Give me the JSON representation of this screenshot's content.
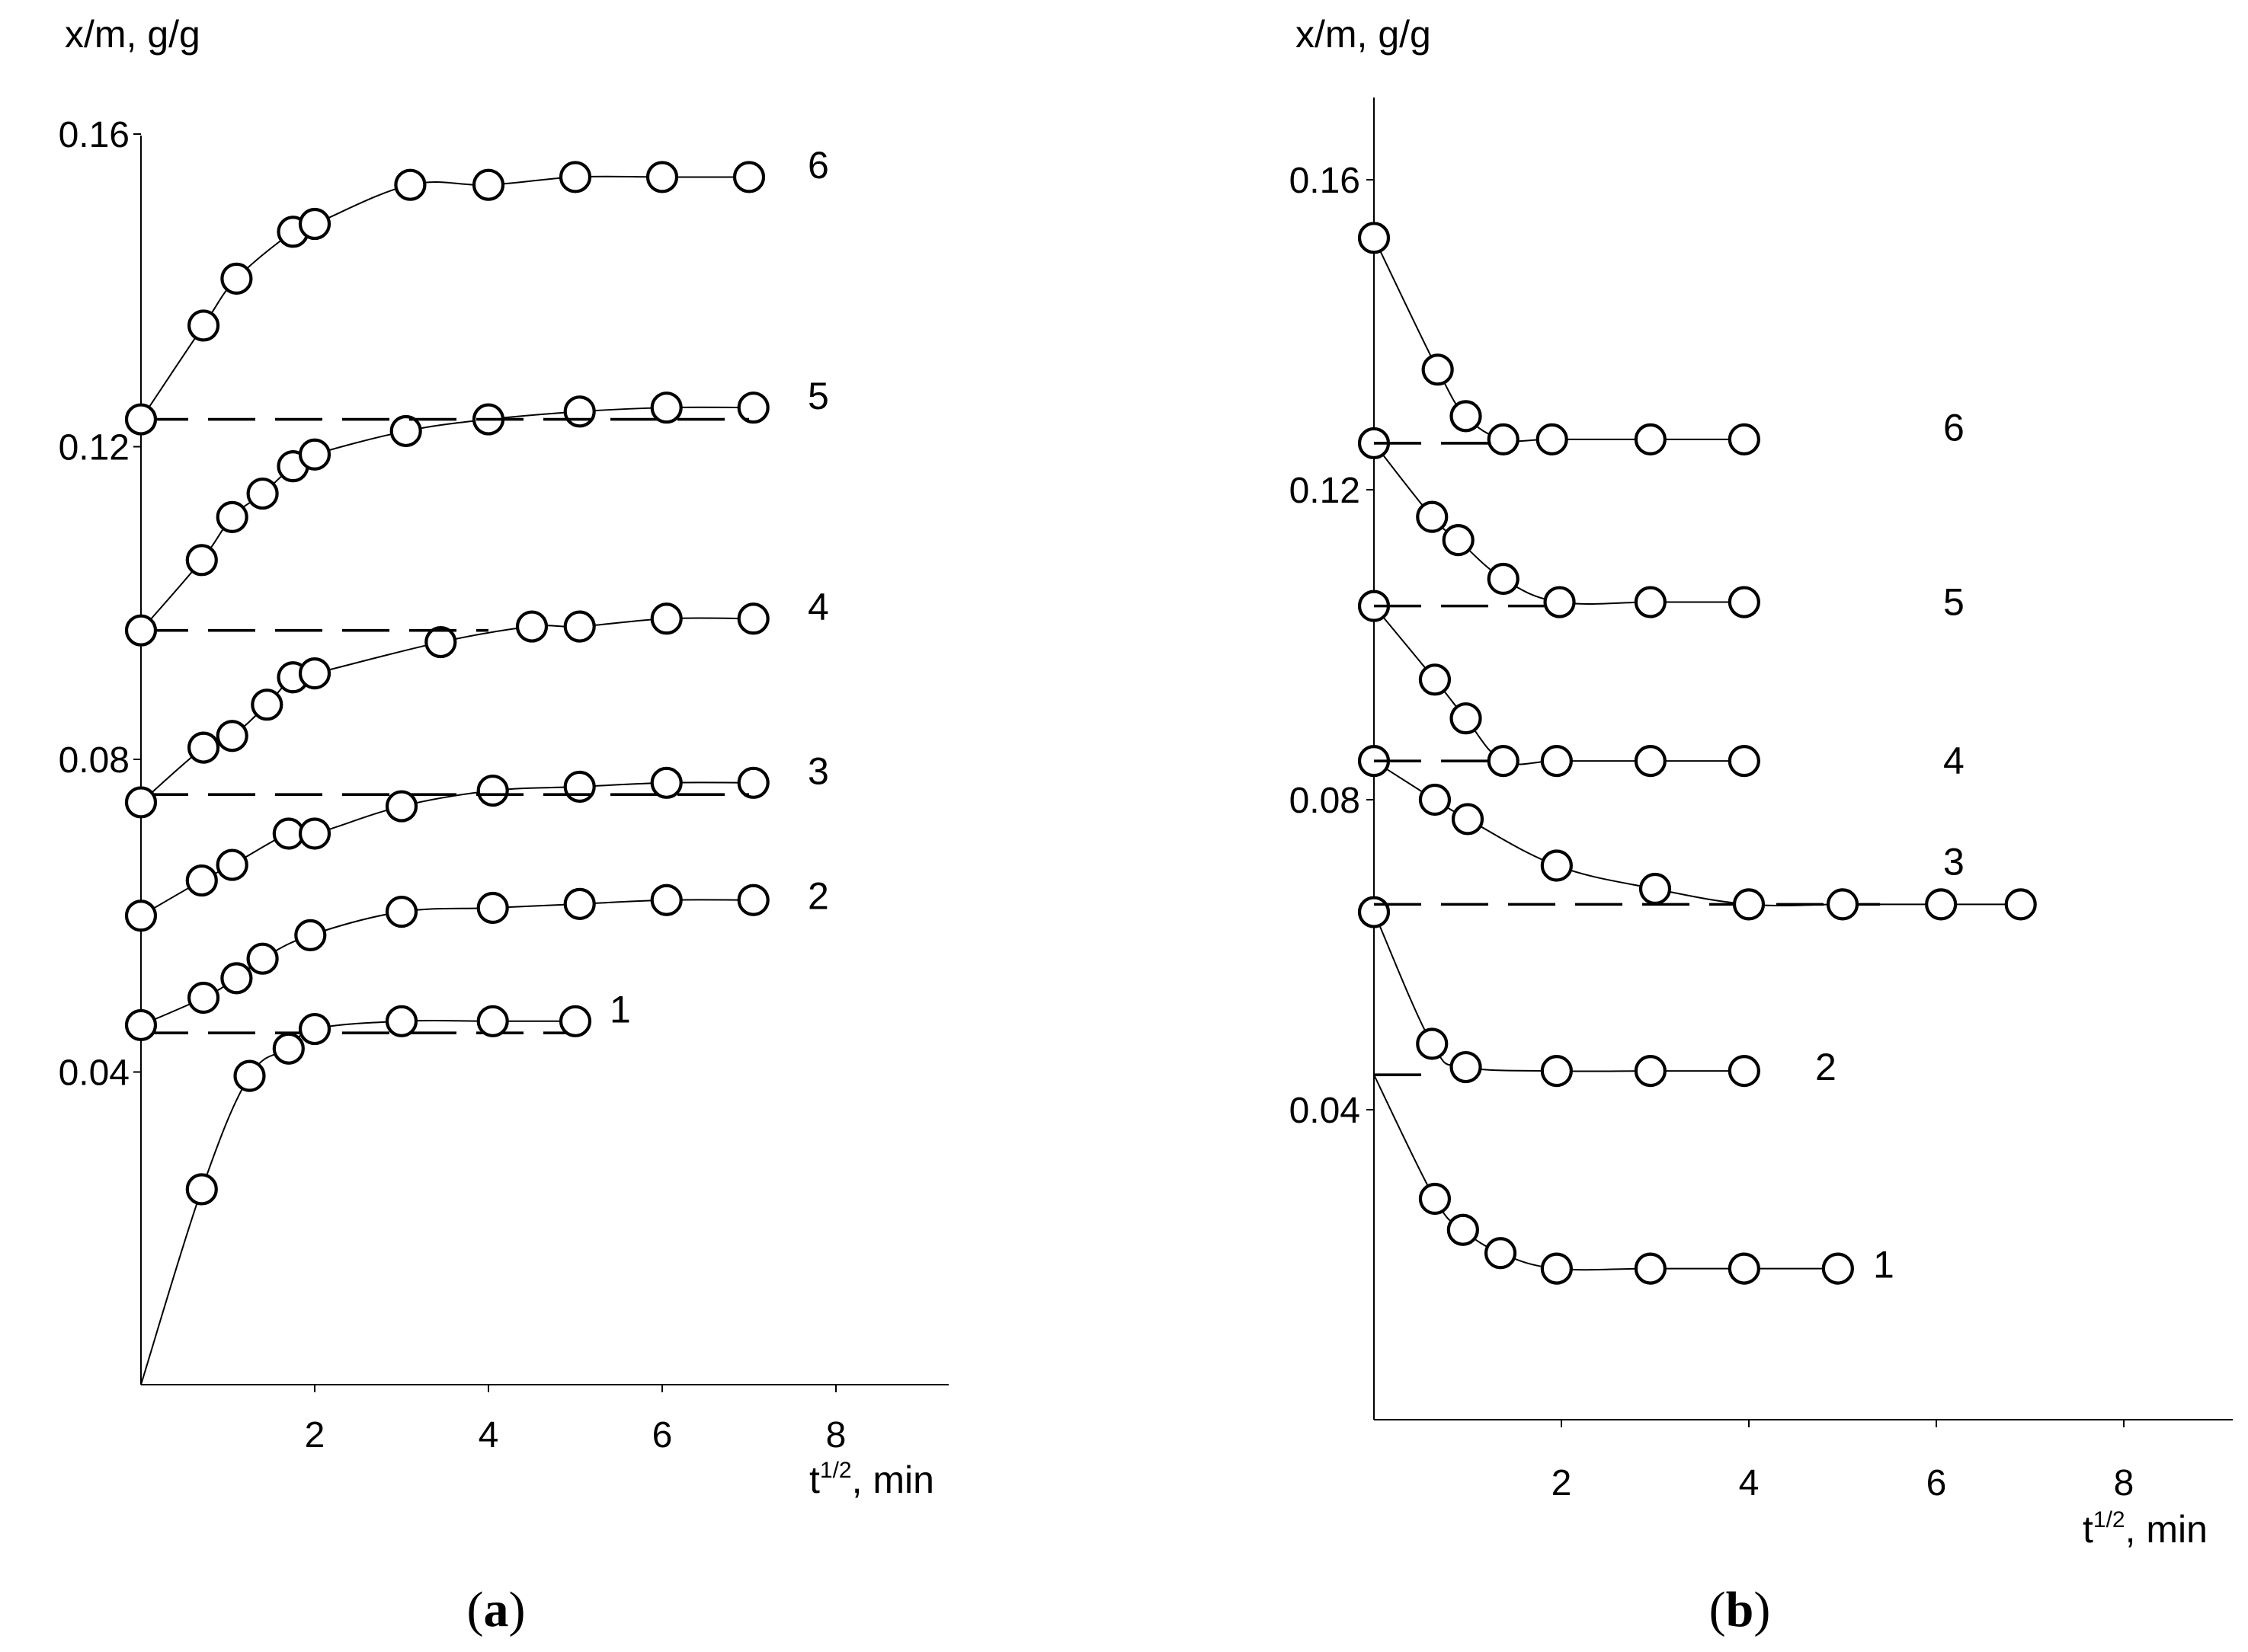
{
  "chart_data": [
    {
      "type": "line",
      "panel": "(a)",
      "panel_letter": "a",
      "ylabel": "x/m, g/g",
      "xlabel": {
        "base": "t",
        "sup": "1/2",
        "rest": ", min"
      },
      "xlim": [
        0,
        9.3
      ],
      "ylim": [
        0,
        0.165
      ],
      "xticks": [
        2,
        4,
        6,
        8
      ],
      "yticks": [
        0.04,
        0.08,
        0.12,
        0.16
      ],
      "ytick_labels": [
        "0.04",
        "0.08",
        "0.12",
        "0.16"
      ],
      "xtick_labels": [
        "2",
        "4",
        "6",
        "8"
      ],
      "grid": false,
      "series": [
        {
          "label": "1",
          "start": [
            0,
            0.0
          ],
          "points": [
            [
              0.7,
              0.025
            ],
            [
              1.25,
              0.0395
            ],
            [
              1.7,
              0.043
            ],
            [
              2.0,
              0.0455
            ],
            [
              3.0,
              0.0465
            ],
            [
              4.05,
              0.0465
            ],
            [
              5.0,
              0.0465
            ]
          ],
          "dashed": [
            0,
            5.0,
            0.045
          ]
        },
        {
          "label": "2",
          "points": [
            [
              0,
              0.046
            ],
            [
              0.72,
              0.0495
            ],
            [
              1.1,
              0.052
            ],
            [
              1.4,
              0.0545
            ],
            [
              1.95,
              0.0575
            ],
            [
              3.0,
              0.0605
            ],
            [
              4.05,
              0.061
            ],
            [
              5.05,
              0.0615
            ],
            [
              6.05,
              0.062
            ],
            [
              7.05,
              0.062
            ]
          ],
          "dashed": null
        },
        {
          "label": "3",
          "points": [
            [
              0,
              0.06
            ],
            [
              0.7,
              0.0645
            ],
            [
              1.05,
              0.0665
            ],
            [
              1.7,
              0.0705
            ],
            [
              2.0,
              0.0705
            ],
            [
              3.0,
              0.074
            ],
            [
              4.05,
              0.076
            ],
            [
              5.05,
              0.0765
            ],
            [
              6.05,
              0.077
            ],
            [
              7.05,
              0.077
            ]
          ],
          "dashed": null
        },
        {
          "label": "4",
          "points": [
            [
              0,
              0.0745
            ],
            [
              0.72,
              0.0815
            ],
            [
              1.05,
              0.083
            ],
            [
              1.45,
              0.087
            ],
            [
              1.75,
              0.0905
            ],
            [
              2.0,
              0.091
            ],
            [
              3.45,
              0.095
            ],
            [
              4.5,
              0.097
            ],
            [
              5.05,
              0.097
            ],
            [
              6.05,
              0.098
            ],
            [
              7.05,
              0.098
            ]
          ],
          "dashed": [
            0,
            7.0,
            0.0755
          ]
        },
        {
          "label": "5",
          "points": [
            [
              0,
              0.0965
            ],
            [
              0.7,
              0.1055
            ],
            [
              1.05,
              0.111
            ],
            [
              1.4,
              0.114
            ],
            [
              1.75,
              0.1175
            ],
            [
              2.0,
              0.119
            ],
            [
              3.05,
              0.122
            ],
            [
              4.0,
              0.1235
            ],
            [
              5.05,
              0.1245
            ],
            [
              6.05,
              0.125
            ],
            [
              7.05,
              0.125
            ]
          ],
          "dashed": [
            0,
            4.0,
            0.0965
          ]
        },
        {
          "label": "6",
          "points": [
            [
              0,
              0.1235
            ],
            [
              0.72,
              0.1355
            ],
            [
              1.1,
              0.1415
            ],
            [
              1.75,
              0.1475
            ],
            [
              2.0,
              0.1485
            ],
            [
              3.1,
              0.1535
            ],
            [
              4.0,
              0.1535
            ],
            [
              5.0,
              0.1545
            ],
            [
              6.0,
              0.1545
            ],
            [
              7.0,
              0.1545
            ]
          ],
          "dashed": [
            0,
            7.0,
            0.1235
          ]
        }
      ]
    },
    {
      "type": "line",
      "panel": "(b)",
      "panel_letter": "b",
      "ylabel": "x/m, g/g",
      "xlabel": {
        "base": "t",
        "sup": "1/2",
        "rest": ", min"
      },
      "xlim": [
        0,
        9.2
      ],
      "ylim": [
        0,
        0.164
      ],
      "xticks": [
        2,
        4,
        6,
        8
      ],
      "yticks": [
        0.04,
        0.08,
        0.12,
        0.16
      ],
      "ytick_labels": [
        "0.04",
        "0.08",
        "0.12",
        "0.16"
      ],
      "xtick_labels": [
        "2",
        "4",
        "6",
        "8"
      ],
      "grid": false,
      "series": [
        {
          "label": "1",
          "start": [
            0,
            0.0445
          ],
          "points": [
            [
              0.65,
              0.0285
            ],
            [
              0.95,
              0.0245
            ],
            [
              1.35,
              0.0215
            ],
            [
              1.95,
              0.0195
            ],
            [
              2.95,
              0.0195
            ],
            [
              3.95,
              0.0195
            ],
            [
              4.95,
              0.0195
            ]
          ],
          "dashed": null
        },
        {
          "label": "2",
          "points": [
            [
              0,
              0.0655
            ],
            [
              0.62,
              0.0485
            ],
            [
              0.98,
              0.0455
            ],
            [
              1.95,
              0.045
            ],
            [
              2.95,
              0.045
            ],
            [
              3.95,
              0.045
            ]
          ],
          "dashed": [
            0,
            0.65,
            0.0445
          ]
        },
        {
          "label": "3",
          "points": [
            [
              0,
              0.085
            ],
            [
              0.65,
              0.08
            ],
            [
              1.0,
              0.0775
            ],
            [
              1.95,
              0.0715
            ],
            [
              3.0,
              0.0685
            ],
            [
              4.0,
              0.0665
            ],
            [
              5.0,
              0.0665
            ],
            [
              6.05,
              0.0665
            ],
            [
              6.9,
              0.0665
            ]
          ],
          "dashed": [
            0,
            5.4,
            0.0665
          ]
        },
        {
          "label": "4",
          "points": [
            [
              0,
              0.105
            ],
            [
              0.65,
              0.0955
            ],
            [
              0.98,
              0.0905
            ],
            [
              1.38,
              0.085
            ],
            [
              1.95,
              0.085
            ],
            [
              2.95,
              0.085
            ],
            [
              3.95,
              0.085
            ]
          ],
          "dashed": [
            0,
            1.4,
            0.085
          ]
        },
        {
          "label": "5",
          "points": [
            [
              0,
              0.126
            ],
            [
              0.62,
              0.1165
            ],
            [
              0.9,
              0.1135
            ],
            [
              1.38,
              0.1085
            ],
            [
              1.98,
              0.1055
            ],
            [
              2.95,
              0.1055
            ],
            [
              3.95,
              0.1055
            ]
          ],
          "dashed": [
            0,
            2.0,
            0.105
          ]
        },
        {
          "label": "6",
          "points": [
            [
              0,
              0.1525
            ],
            [
              0.68,
              0.1355
            ],
            [
              0.98,
              0.1295
            ],
            [
              1.38,
              0.1265
            ],
            [
              1.9,
              0.1265
            ],
            [
              2.95,
              0.1265
            ],
            [
              3.95,
              0.1265
            ]
          ],
          "dashed": [
            0,
            1.4,
            0.126
          ]
        }
      ]
    }
  ]
}
